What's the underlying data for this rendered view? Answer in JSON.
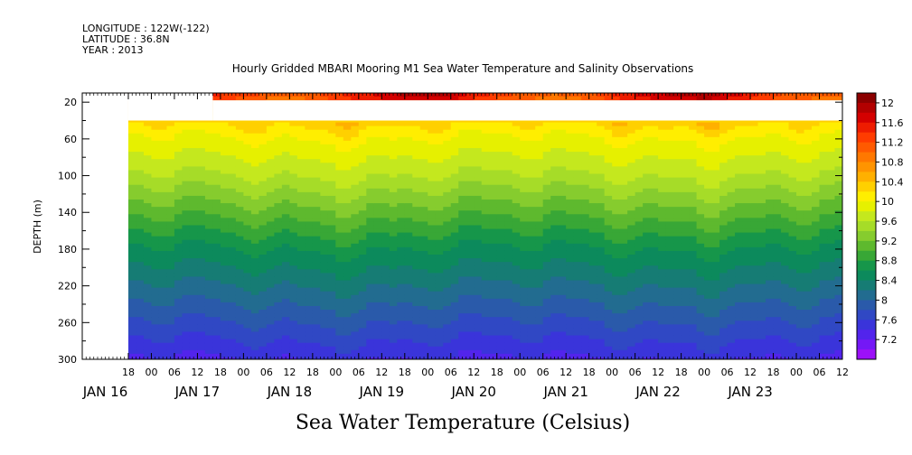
{
  "header": {
    "longitude": "LONGITUDE : 122W(-122)",
    "latitude": "LATITUDE : 36.8N",
    "year": "YEAR : 2013"
  },
  "chart_data": {
    "type": "heatmap",
    "title": "Hourly Gridded MBARI Mooring M1 Sea Water Temperature and Salinity Observations",
    "bottom_title": "Sea Water Temperature (Celsius)",
    "ylabel": "DEPTH (m)",
    "ylim": [
      300,
      10
    ],
    "y_ticks": [
      20,
      60,
      100,
      140,
      180,
      220,
      260,
      300
    ],
    "x_range_hours": [
      -42,
      156
    ],
    "x_hour_tick_labels": [
      "18",
      "00",
      "06",
      "12",
      "18",
      "00",
      "06",
      "12",
      "18",
      "00",
      "06",
      "12",
      "18",
      "00",
      "06",
      "12",
      "18",
      "00",
      "06",
      "12",
      "18",
      "00",
      "06",
      "12",
      "18",
      "00",
      "06",
      "12",
      "18",
      "00",
      "06",
      "12"
    ],
    "date_labels": [
      "JAN 16",
      "JAN 17",
      "JAN 18",
      "JAN 19",
      "JAN 20",
      "JAN 21",
      "JAN 22",
      "JAN 23"
    ],
    "colorbar": {
      "ticks": [
        "12",
        "11.6",
        "11.2",
        "10.8",
        "10.4",
        "10",
        "9.6",
        "9.2",
        "8.8",
        "8.4",
        "8",
        "7.6",
        "7.2"
      ],
      "levels": [
        12.2,
        12.0,
        11.8,
        11.6,
        11.4,
        11.2,
        11.0,
        10.8,
        10.6,
        10.4,
        10.2,
        10.0,
        9.8,
        9.6,
        9.4,
        9.2,
        9.0,
        8.8,
        8.6,
        8.4,
        8.2,
        8.0,
        7.8,
        7.6,
        7.4,
        7.2,
        7.0
      ],
      "colors": [
        "#8b0000",
        "#b20000",
        "#d40000",
        "#ee1c00",
        "#ff3c00",
        "#ff5a00",
        "#ff7800",
        "#ff9400",
        "#ffb000",
        "#ffd000",
        "#ffee00",
        "#e6f000",
        "#c4e81e",
        "#a6dc28",
        "#86cc2e",
        "#5eb92e",
        "#38a736",
        "#16964a",
        "#0c8a5c",
        "#167c74",
        "#226c90",
        "#2a5aaa",
        "#3048c4",
        "#3a34da",
        "#5224ec",
        "#7418f6",
        "#9c10f8"
      ]
    },
    "depth_profile_deg_c": [
      {
        "depth": 10,
        "temp": 11.0
      },
      {
        "depth": 40,
        "temp": 10.3
      },
      {
        "depth": 60,
        "temp": 10.0
      },
      {
        "depth": 100,
        "temp": 9.6
      },
      {
        "depth": 140,
        "temp": 9.1
      },
      {
        "depth": 180,
        "temp": 8.6
      },
      {
        "depth": 220,
        "temp": 8.2
      },
      {
        "depth": 260,
        "temp": 7.8
      },
      {
        "depth": 300,
        "temp": 7.4
      }
    ],
    "data_gaps": [
      {
        "x_start_hours": -42,
        "x_end_hours": -30,
        "depth_start": 10,
        "depth_end": 300
      },
      {
        "x_start_hours": -30,
        "x_end_hours": -8,
        "depth_start": 10,
        "depth_end": 40
      },
      {
        "x_start_hours": -8,
        "x_end_hours": 156,
        "depth_start": 18,
        "depth_end": 40
      }
    ]
  }
}
